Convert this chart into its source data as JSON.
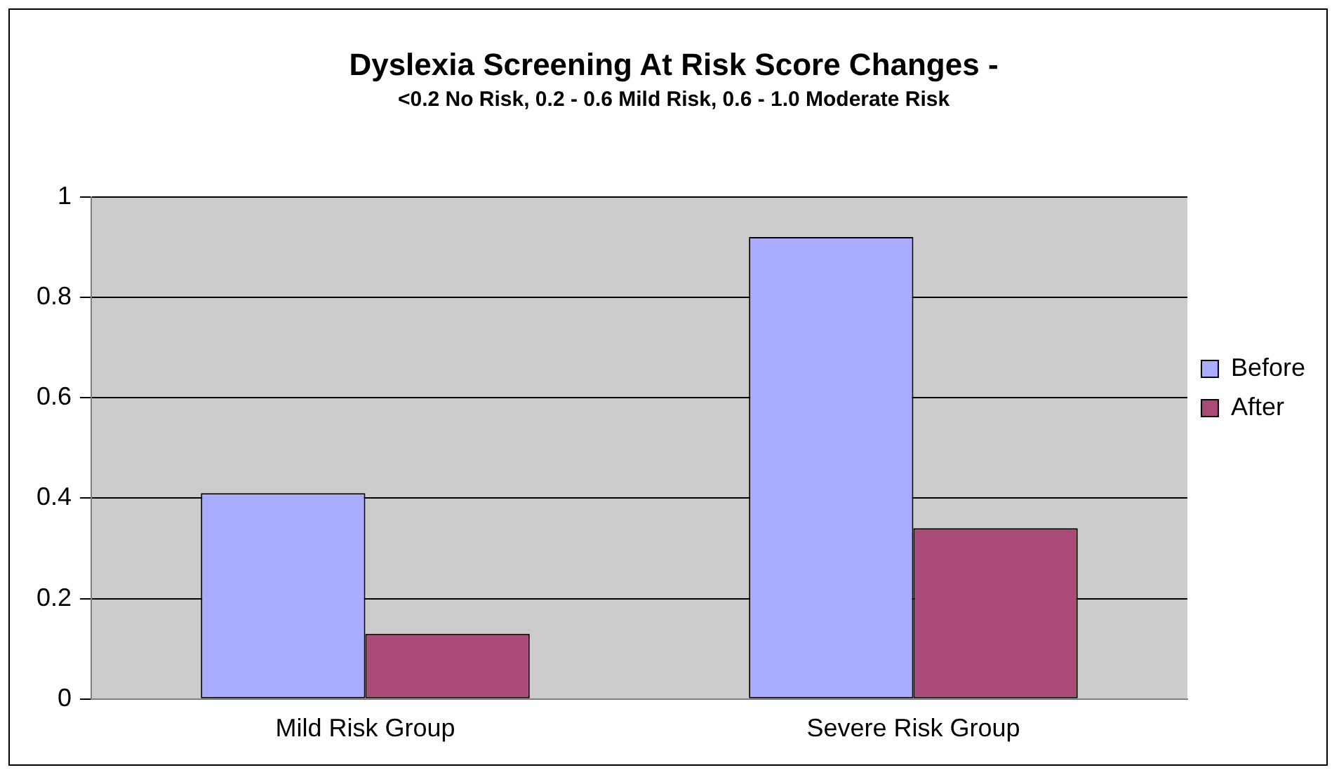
{
  "chart_data": {
    "type": "bar",
    "title": "Dyslexia Screening At Risk Score Changes -",
    "subtitle": "<0.2 No Risk, 0.2 - 0.6 Mild Risk, 0.6 - 1.0 Moderate Risk",
    "categories": [
      "Mild Risk Group",
      "Severe Risk Group"
    ],
    "series": [
      {
        "name": "Before",
        "color": "#a9acff",
        "values": [
          0.41,
          0.92
        ]
      },
      {
        "name": "After",
        "color": "#a94a78",
        "values": [
          0.13,
          0.34
        ]
      }
    ],
    "ylim": [
      0,
      1
    ],
    "yticks": [
      0,
      0.2,
      0.4,
      0.6,
      0.8,
      1
    ],
    "grid": "y",
    "legend": "right"
  }
}
